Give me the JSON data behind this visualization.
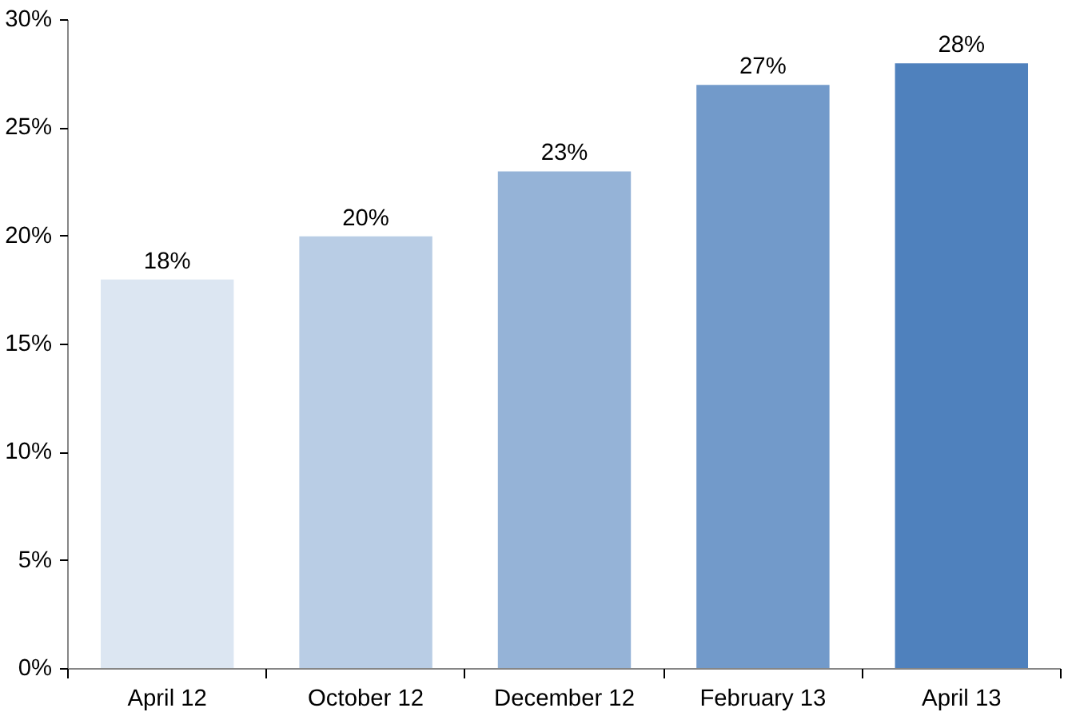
{
  "chart_data": {
    "type": "bar",
    "categories": [
      "April 12",
      "October 12",
      "December 12",
      "February 13",
      "April 13"
    ],
    "values": [
      18,
      20,
      23,
      27,
      28
    ],
    "colors": [
      "#dce6f2",
      "#b9cde5",
      "#95b3d7",
      "#729aca",
      "#4f81bd"
    ],
    "value_labels": [
      "18%",
      "20%",
      "23%",
      "27%",
      "28%"
    ],
    "ylim": [
      0,
      30
    ],
    "yticks": [
      {
        "value": 0,
        "label": "0%"
      },
      {
        "value": 5,
        "label": "5%"
      },
      {
        "value": 10,
        "label": "10%"
      },
      {
        "value": 15,
        "label": "15%"
      },
      {
        "value": 20,
        "label": "20%"
      },
      {
        "value": 25,
        "label": "25%"
      },
      {
        "value": 30,
        "label": "30%"
      }
    ],
    "grid": false
  }
}
